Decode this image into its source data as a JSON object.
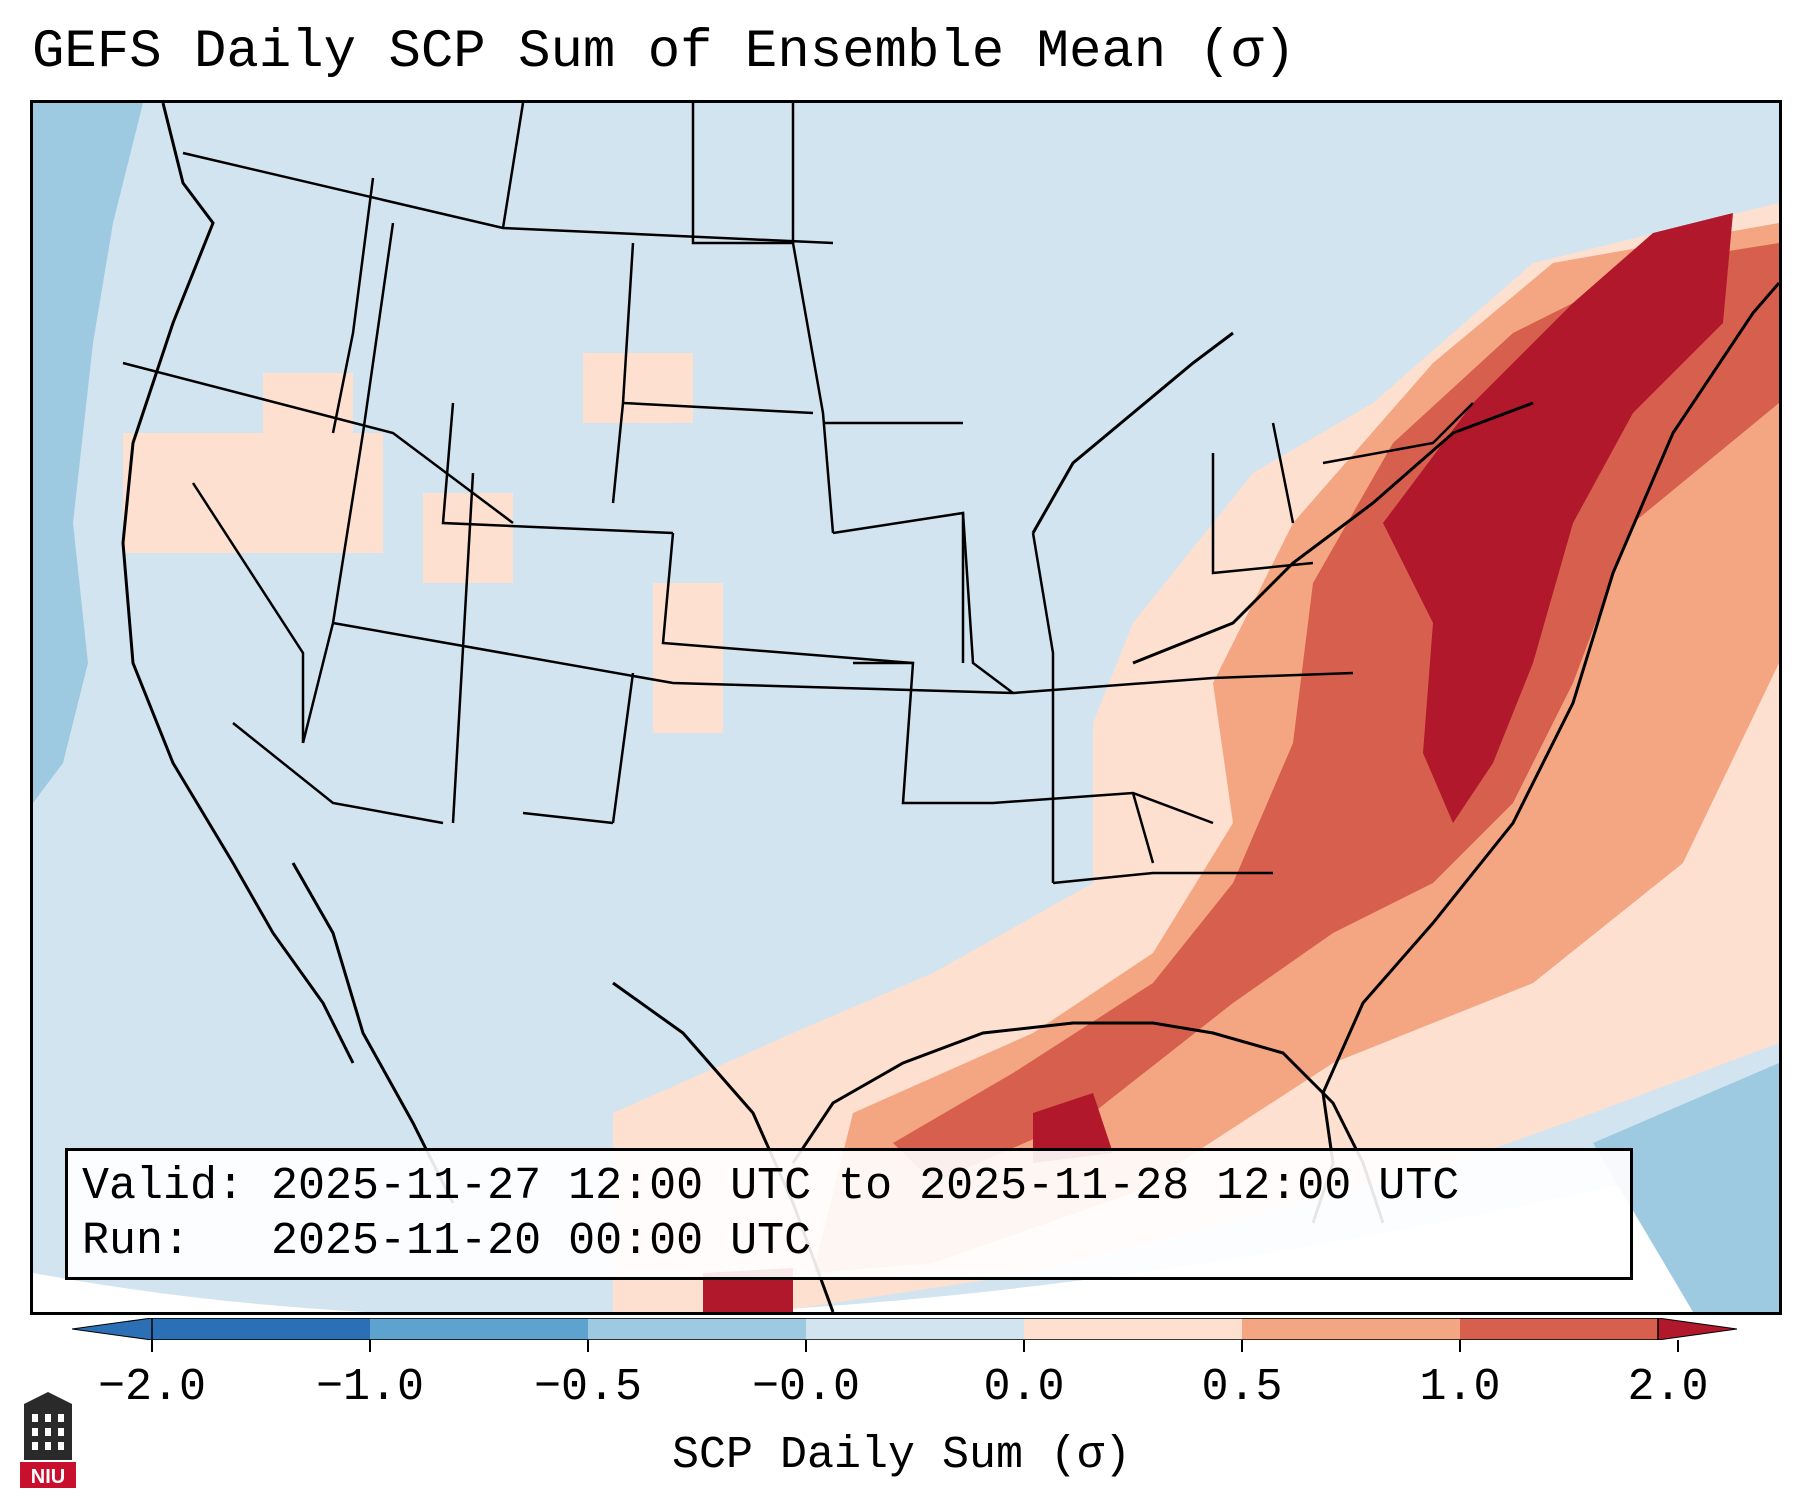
{
  "title": "GEFS Daily SCP Sum of Ensemble Mean (σ)",
  "info": {
    "valid_label": "Valid:",
    "valid_value": "2025-11-27 12:00 UTC to 2025-11-28 12:00 UTC",
    "run_label": "Run:",
    "run_value": "2025-11-20 00:00 UTC"
  },
  "colorbar": {
    "label": "SCP Daily Sum (σ)",
    "ticks": [
      "−2.0",
      "−1.0",
      "−0.5",
      "−0.0",
      "0.0",
      "0.5",
      "1.0",
      "2.0"
    ],
    "colors": [
      "#2b6fb4",
      "#5ea3cf",
      "#9ecae1",
      "#d2e4f0",
      "#fde0cf",
      "#f4a582",
      "#d6604d",
      "#b2182b"
    ]
  },
  "logo": {
    "name": "NIU"
  }
}
